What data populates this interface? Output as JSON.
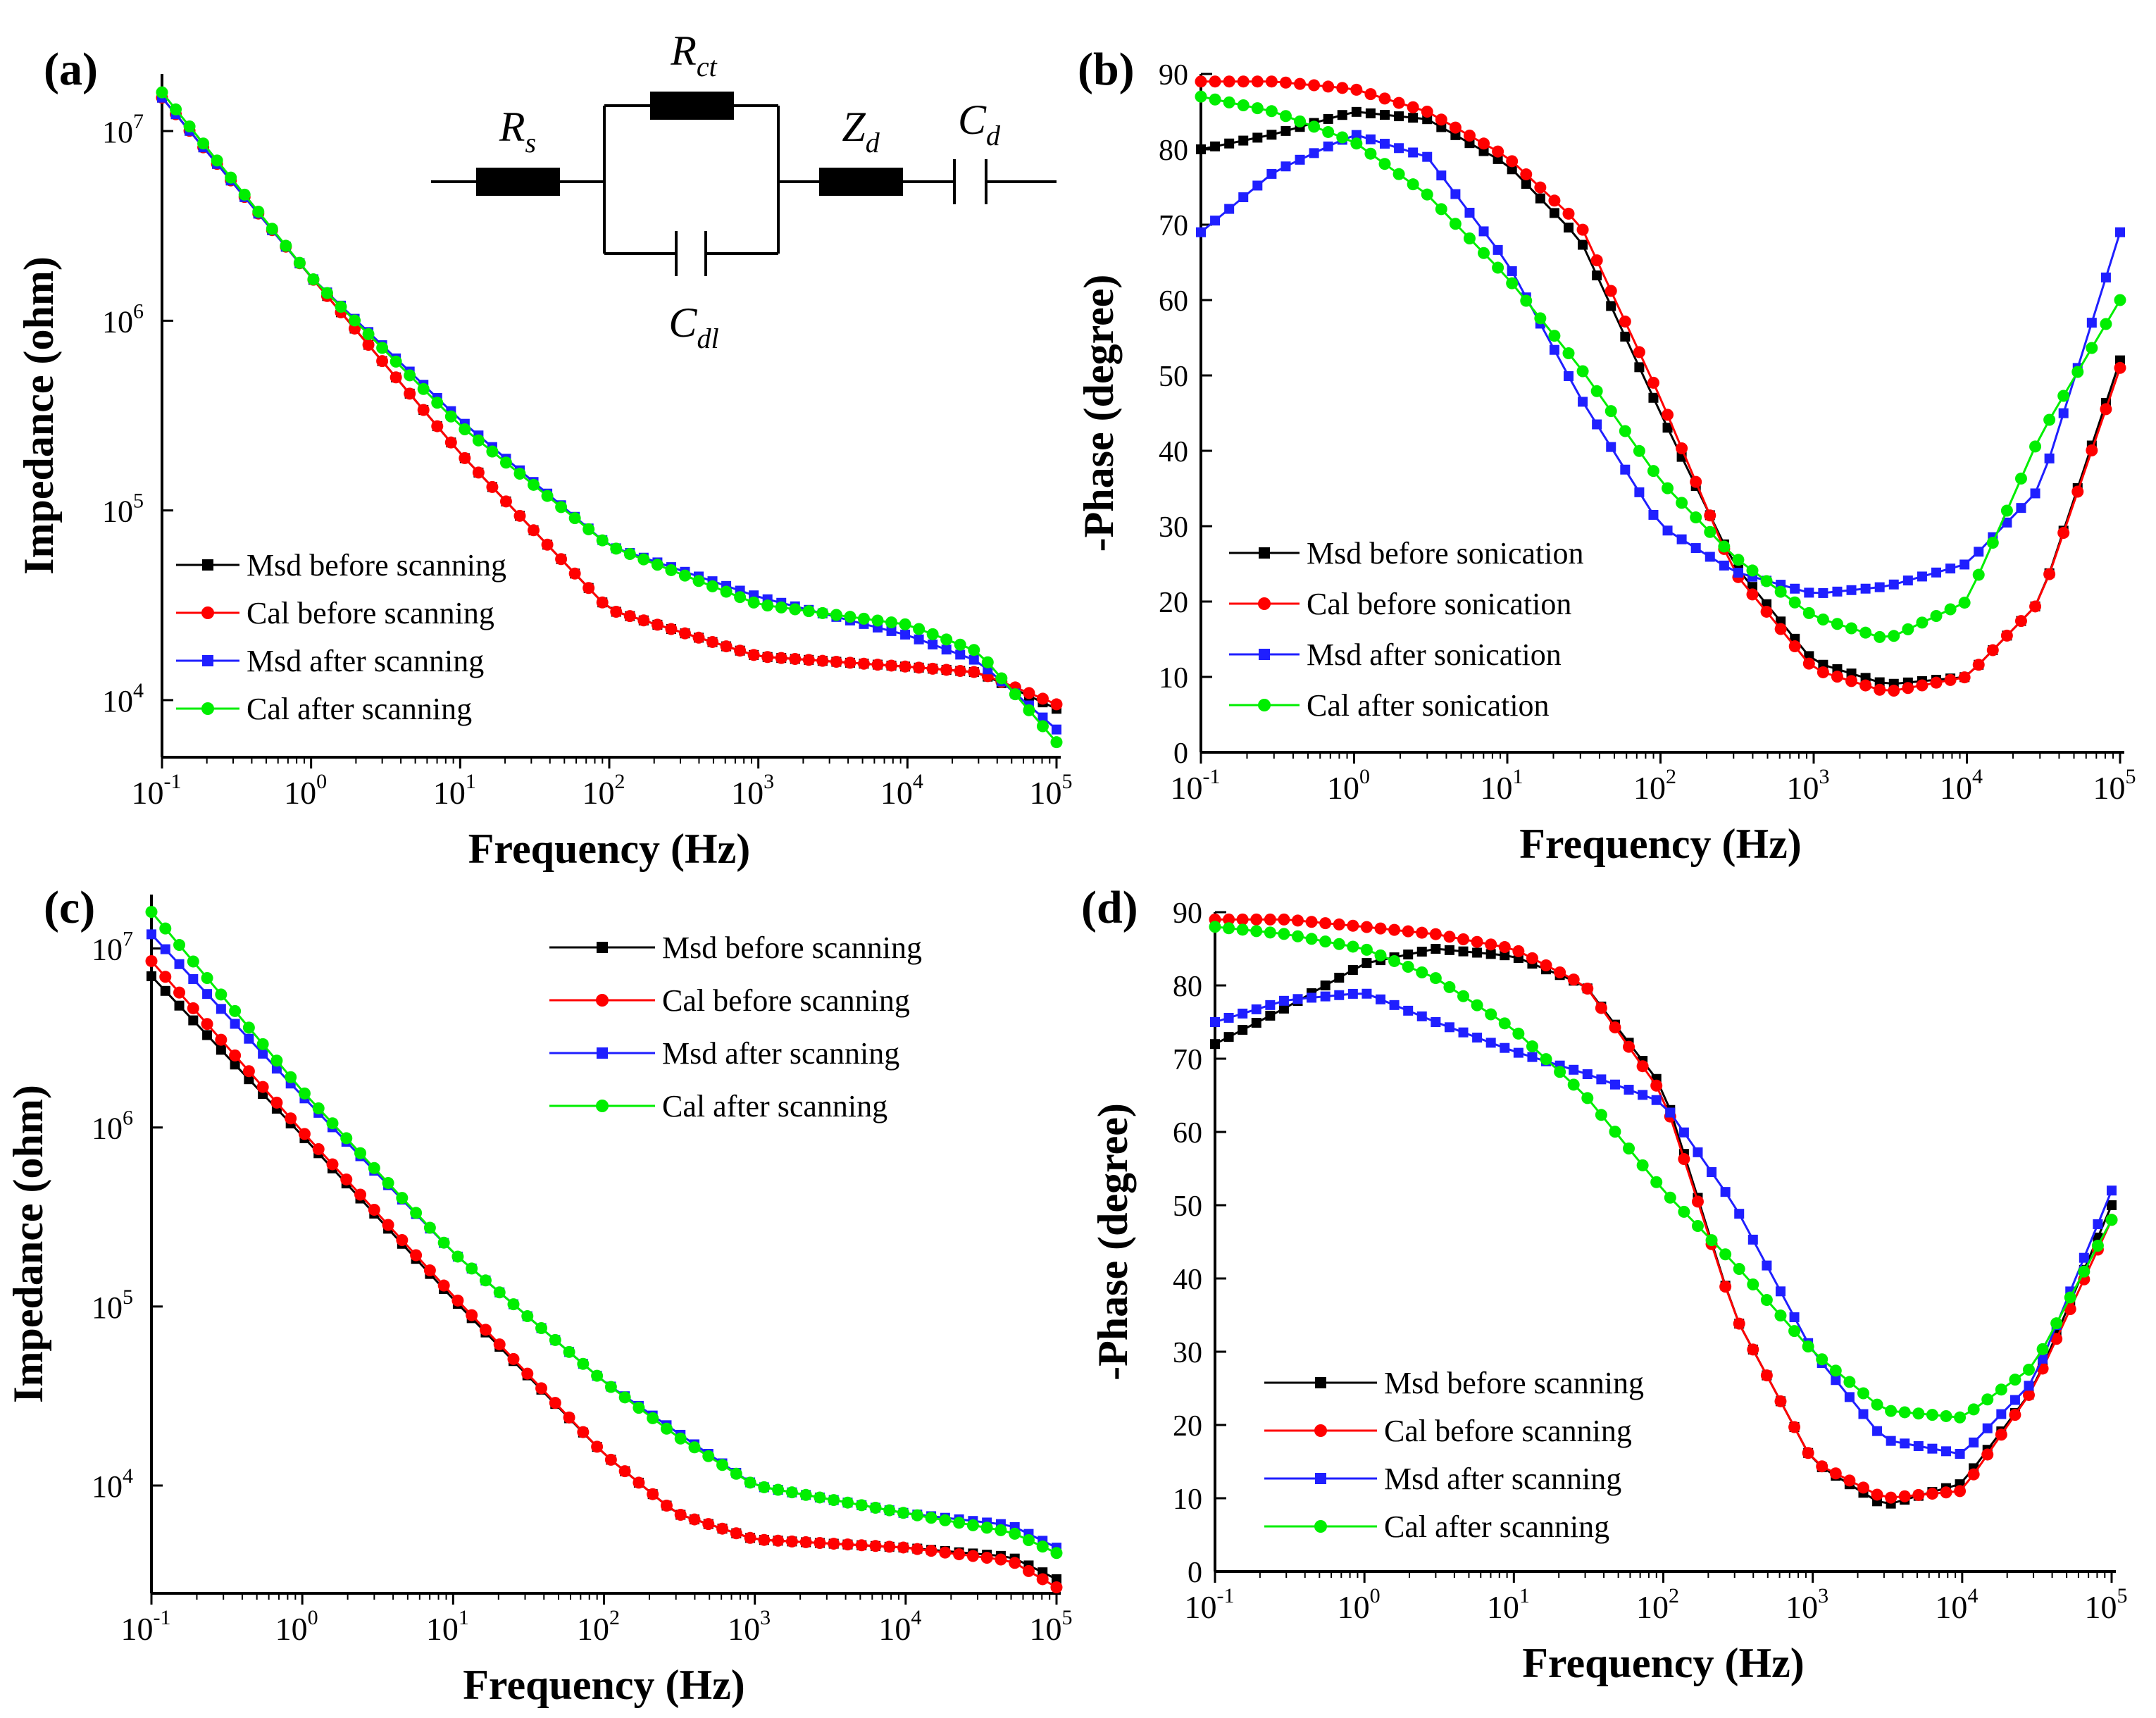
{
  "colors": {
    "black": "#000000",
    "red": "#ff0000",
    "blue": "#1f1fff",
    "green": "#00ee00"
  },
  "chart_data": [
    {
      "panel": "(a)",
      "type": "line",
      "xlabel": "Frequency (Hz)",
      "ylabel": "Impedance (ohm)",
      "x_scale": "log",
      "y_scale": "log",
      "xlim": [
        0.1,
        100000
      ],
      "ylim": [
        5000,
        20000000
      ],
      "x_ticks": [
        {
          "base": "10",
          "exp": "-1"
        },
        {
          "base": "10",
          "exp": "0"
        },
        {
          "base": "10",
          "exp": "1"
        },
        {
          "base": "10",
          "exp": "2"
        },
        {
          "base": "10",
          "exp": "3"
        },
        {
          "base": "10",
          "exp": "4"
        },
        {
          "base": "10",
          "exp": "5"
        }
      ],
      "y_ticks": [
        {
          "base": "10",
          "exp": "4",
          "value": 10000
        },
        {
          "base": "10",
          "exp": "5",
          "value": 100000
        },
        {
          "base": "10",
          "exp": "6",
          "value": 1000000
        },
        {
          "base": "10",
          "exp": "7",
          "value": 10000000
        }
      ],
      "legend_position": "lower-left",
      "inset_circuit": {
        "labels": [
          {
            "main": "R",
            "sub": "s"
          },
          {
            "main": "R",
            "sub": "ct"
          },
          {
            "main": "C",
            "sub": "dl"
          },
          {
            "main": "Z",
            "sub": "d"
          },
          {
            "main": "C",
            "sub": "d"
          }
        ]
      },
      "series": [
        {
          "name": "Msd before scanning",
          "color": "#000000",
          "marker": "square",
          "x": [
            0.1,
            1,
            10,
            100,
            1000,
            10000,
            30000,
            100000
          ],
          "y": [
            15000000,
            1700000,
            200000,
            30000,
            17000,
            15000,
            14000,
            9000
          ]
        },
        {
          "name": "Cal  before scanning",
          "color": "#ff0000",
          "marker": "circle",
          "x": [
            0.1,
            1,
            10,
            100,
            1000,
            10000,
            30000,
            100000
          ],
          "y": [
            15000000,
            1700000,
            200000,
            30000,
            17000,
            15000,
            14000,
            9500
          ]
        },
        {
          "name": "Msd after scanning",
          "color": "#1f1fff",
          "marker": "square",
          "x": [
            0.1,
            1,
            10,
            100,
            1000,
            10000,
            30000,
            100000
          ],
          "y": [
            15000000,
            1700000,
            300000,
            65000,
            35000,
            22000,
            16000,
            7000
          ]
        },
        {
          "name": "Cal  after scanning",
          "color": "#00ee00",
          "marker": "circle",
          "x": [
            0.1,
            1,
            10,
            100,
            1000,
            10000,
            30000,
            100000
          ],
          "y": [
            16000000,
            1700000,
            280000,
            65000,
            32000,
            25000,
            18000,
            6000
          ]
        }
      ]
    },
    {
      "panel": "(b)",
      "type": "line",
      "xlabel": "Frequency (Hz)",
      "ylabel": "-Phase (degree)",
      "x_scale": "log",
      "y_scale": "linear",
      "xlim": [
        0.1,
        100000
      ],
      "ylim": [
        0,
        90
      ],
      "x_ticks": [
        {
          "base": "10",
          "exp": "-1"
        },
        {
          "base": "10",
          "exp": "0"
        },
        {
          "base": "10",
          "exp": "1"
        },
        {
          "base": "10",
          "exp": "2"
        },
        {
          "base": "10",
          "exp": "3"
        },
        {
          "base": "10",
          "exp": "4"
        },
        {
          "base": "10",
          "exp": "5"
        }
      ],
      "y_ticks": [
        "0",
        "10",
        "20",
        "30",
        "40",
        "50",
        "60",
        "70",
        "80",
        "90"
      ],
      "legend_position": "lower-left",
      "series": [
        {
          "name": "Msd before sonication",
          "color": "#000000",
          "marker": "square",
          "x": [
            0.1,
            0.3,
            1,
            3,
            10,
            30,
            100,
            300,
            1000,
            3000,
            10000,
            30000,
            100000
          ],
          "y": [
            80,
            82,
            85,
            84,
            78,
            68,
            45,
            25,
            12,
            9,
            10,
            20,
            52
          ]
        },
        {
          "name": "Cal before sonication",
          "color": "#ff0000",
          "marker": "circle",
          "x": [
            0.1,
            0.3,
            1,
            3,
            10,
            30,
            100,
            300,
            1000,
            3000,
            10000,
            30000,
            100000
          ],
          "y": [
            89,
            89,
            88,
            85,
            79,
            70,
            47,
            24,
            11,
            8,
            10,
            20,
            51
          ]
        },
        {
          "name": "Msd after sonication",
          "color": "#1f1fff",
          "marker": "square",
          "x": [
            0.1,
            0.3,
            1,
            3,
            10,
            30,
            100,
            300,
            1000,
            3000,
            10000,
            30000,
            100000
          ],
          "y": [
            69,
            77,
            82,
            79,
            65,
            47,
            30,
            24,
            21,
            22,
            25,
            35,
            69
          ]
        },
        {
          "name": "Cal after sonication",
          "color": "#00ee00",
          "marker": "circle",
          "x": [
            0.1,
            0.3,
            1,
            3,
            10,
            30,
            100,
            300,
            1000,
            3000,
            10000,
            30000,
            100000
          ],
          "y": [
            87,
            85,
            81,
            74,
            63,
            51,
            36,
            26,
            18,
            15,
            20,
            42,
            60
          ]
        }
      ]
    },
    {
      "panel": "(c)",
      "type": "line",
      "xlabel": "Frequency (Hz)",
      "ylabel": "Impedance (ohm)",
      "x_scale": "log",
      "y_scale": "log",
      "xlim": [
        0.1,
        100000
      ],
      "ylim": [
        2500,
        20000000
      ],
      "x_ticks": [
        {
          "base": "10",
          "exp": "-1"
        },
        {
          "base": "10",
          "exp": "0"
        },
        {
          "base": "10",
          "exp": "1"
        },
        {
          "base": "10",
          "exp": "2"
        },
        {
          "base": "10",
          "exp": "3"
        },
        {
          "base": "10",
          "exp": "4"
        },
        {
          "base": "10",
          "exp": "5"
        }
      ],
      "y_ticks": [
        {
          "base": "10",
          "exp": "4",
          "value": 10000
        },
        {
          "base": "10",
          "exp": "5",
          "value": 100000
        },
        {
          "base": "10",
          "exp": "6",
          "value": 1000000
        },
        {
          "base": "10",
          "exp": "7",
          "value": 10000000
        }
      ],
      "legend_position": "top-right",
      "series": [
        {
          "name": "Msd before scanning",
          "color": "#000000",
          "marker": "square",
          "x": [
            0.1,
            1,
            10,
            100,
            300,
            1000,
            10000,
            50000,
            100000
          ],
          "y": [
            7000000,
            900000,
            110000,
            15000,
            7000,
            5000,
            4500,
            4000,
            3000
          ]
        },
        {
          "name": "Cal  before scanning",
          "color": "#ff0000",
          "marker": "circle",
          "x": [
            0.1,
            1,
            10,
            100,
            300,
            1000,
            10000,
            50000,
            100000
          ],
          "y": [
            8500000,
            950000,
            115000,
            15000,
            7000,
            5000,
            4500,
            3800,
            2700
          ]
        },
        {
          "name": "Msd after scanning",
          "color": "#1f1fff",
          "marker": "square",
          "x": [
            0.1,
            1,
            10,
            100,
            300,
            1000,
            10000,
            50000,
            100000
          ],
          "y": [
            12000000,
            1500000,
            200000,
            38000,
            20000,
            10000,
            7000,
            6000,
            4500
          ]
        },
        {
          "name": "Cal  after scanning",
          "color": "#00ee00",
          "marker": "circle",
          "x": [
            0.1,
            1,
            10,
            100,
            300,
            1000,
            10000,
            50000,
            100000
          ],
          "y": [
            16000000,
            1600000,
            200000,
            38000,
            19000,
            10000,
            7000,
            5500,
            4200
          ]
        }
      ]
    },
    {
      "panel": "(d)",
      "type": "line",
      "xlabel": "Frequency (Hz)",
      "ylabel": "-Phase (degree)",
      "x_scale": "log",
      "y_scale": "linear",
      "xlim": [
        0.1,
        100000
      ],
      "ylim": [
        0,
        90
      ],
      "x_ticks": [
        {
          "base": "10",
          "exp": "-1"
        },
        {
          "base": "10",
          "exp": "0"
        },
        {
          "base": "10",
          "exp": "1"
        },
        {
          "base": "10",
          "exp": "2"
        },
        {
          "base": "10",
          "exp": "3"
        },
        {
          "base": "10",
          "exp": "4"
        },
        {
          "base": "10",
          "exp": "5"
        }
      ],
      "y_ticks": [
        "0",
        "10",
        "20",
        "30",
        "40",
        "50",
        "60",
        "70",
        "80",
        "90"
      ],
      "legend_position": "lower-left",
      "series": [
        {
          "name": "Msd before scanning",
          "color": "#000000",
          "marker": "square",
          "x": [
            0.1,
            0.3,
            1,
            3,
            10,
            30,
            100,
            300,
            1000,
            3000,
            10000,
            30000,
            100000
          ],
          "y": [
            72,
            77,
            83,
            85,
            84,
            80,
            66,
            35,
            15,
            9,
            12,
            25,
            50
          ]
        },
        {
          "name": "Cal  before scanning",
          "color": "#ff0000",
          "marker": "circle",
          "x": [
            0.1,
            0.3,
            1,
            3,
            10,
            30,
            100,
            300,
            1000,
            3000,
            10000,
            30000,
            100000
          ],
          "y": [
            89,
            89,
            88,
            87,
            85,
            80,
            65,
            35,
            15,
            10,
            11,
            25,
            48
          ]
        },
        {
          "name": "Msd  after scanning",
          "color": "#1f1fff",
          "marker": "square",
          "x": [
            0.1,
            0.3,
            1,
            3,
            10,
            30,
            100,
            300,
            1000,
            3000,
            10000,
            30000,
            100000
          ],
          "y": [
            75,
            78,
            79,
            75,
            71,
            68,
            64,
            50,
            30,
            18,
            16,
            26,
            52
          ]
        },
        {
          "name": "Cal after scanning",
          "color": "#00ee00",
          "marker": "circle",
          "x": [
            0.1,
            0.3,
            1,
            3,
            10,
            30,
            100,
            300,
            1000,
            3000,
            10000,
            30000,
            100000
          ],
          "y": [
            88,
            87,
            85,
            81,
            74,
            65,
            52,
            42,
            30,
            22,
            21,
            28,
            48
          ]
        }
      ]
    }
  ]
}
